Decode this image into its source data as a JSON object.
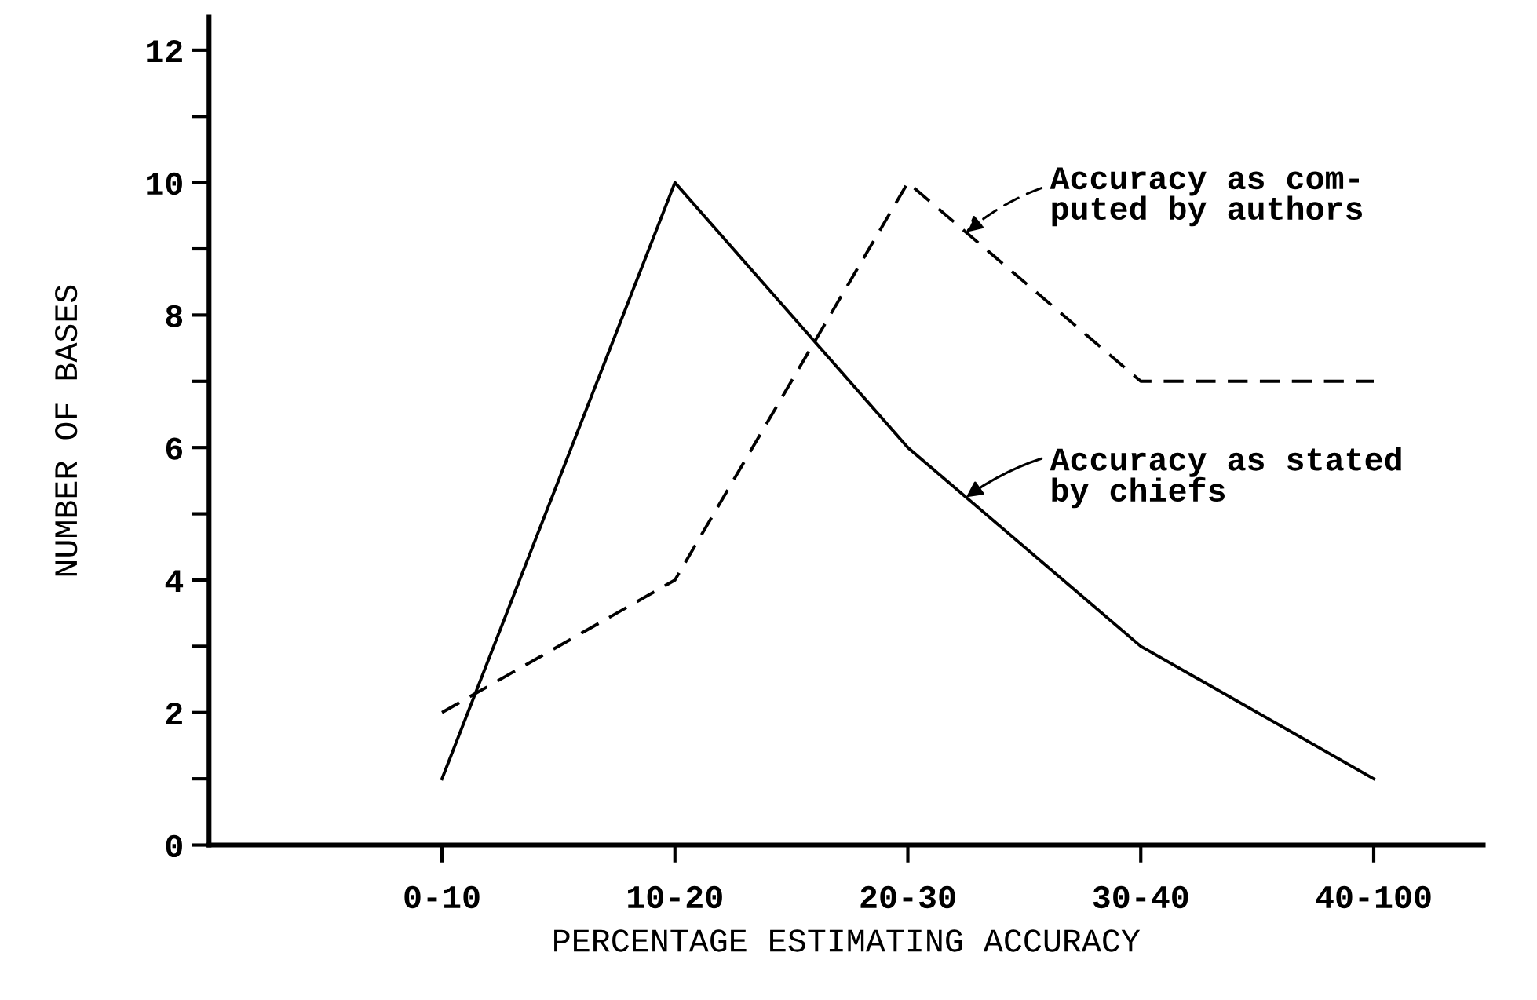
{
  "chart_data": {
    "type": "line",
    "xlabel": "PERCENTAGE ESTIMATING ACCURACY",
    "ylabel": "NUMBER OF BASES",
    "categories": [
      "0-10",
      "10-20",
      "20-30",
      "30-40",
      "40-100"
    ],
    "ylim": [
      0,
      12.5
    ],
    "yticks": [
      0,
      {
        "value": 1,
        "label": null
      },
      2,
      {
        "value": 3,
        "label": null
      },
      4,
      {
        "value": 5,
        "label": null
      },
      6,
      {
        "value": 7,
        "label": null
      },
      8,
      {
        "value": 9,
        "label": null
      },
      10,
      {
        "value": 11,
        "label": null
      },
      12
    ],
    "grid": false,
    "legend": "right",
    "marker": "none",
    "series": [
      {
        "name": "Accuracy as com-\nputed by authors",
        "color": "#000000",
        "line_style": "dashed",
        "values": [
          2,
          4,
          10,
          7,
          7
        ]
      },
      {
        "name": "Accuracy as stated\nby chiefs",
        "color": "#000000",
        "line_style": "solid",
        "values": [
          1,
          10,
          6,
          3,
          1
        ]
      }
    ]
  }
}
